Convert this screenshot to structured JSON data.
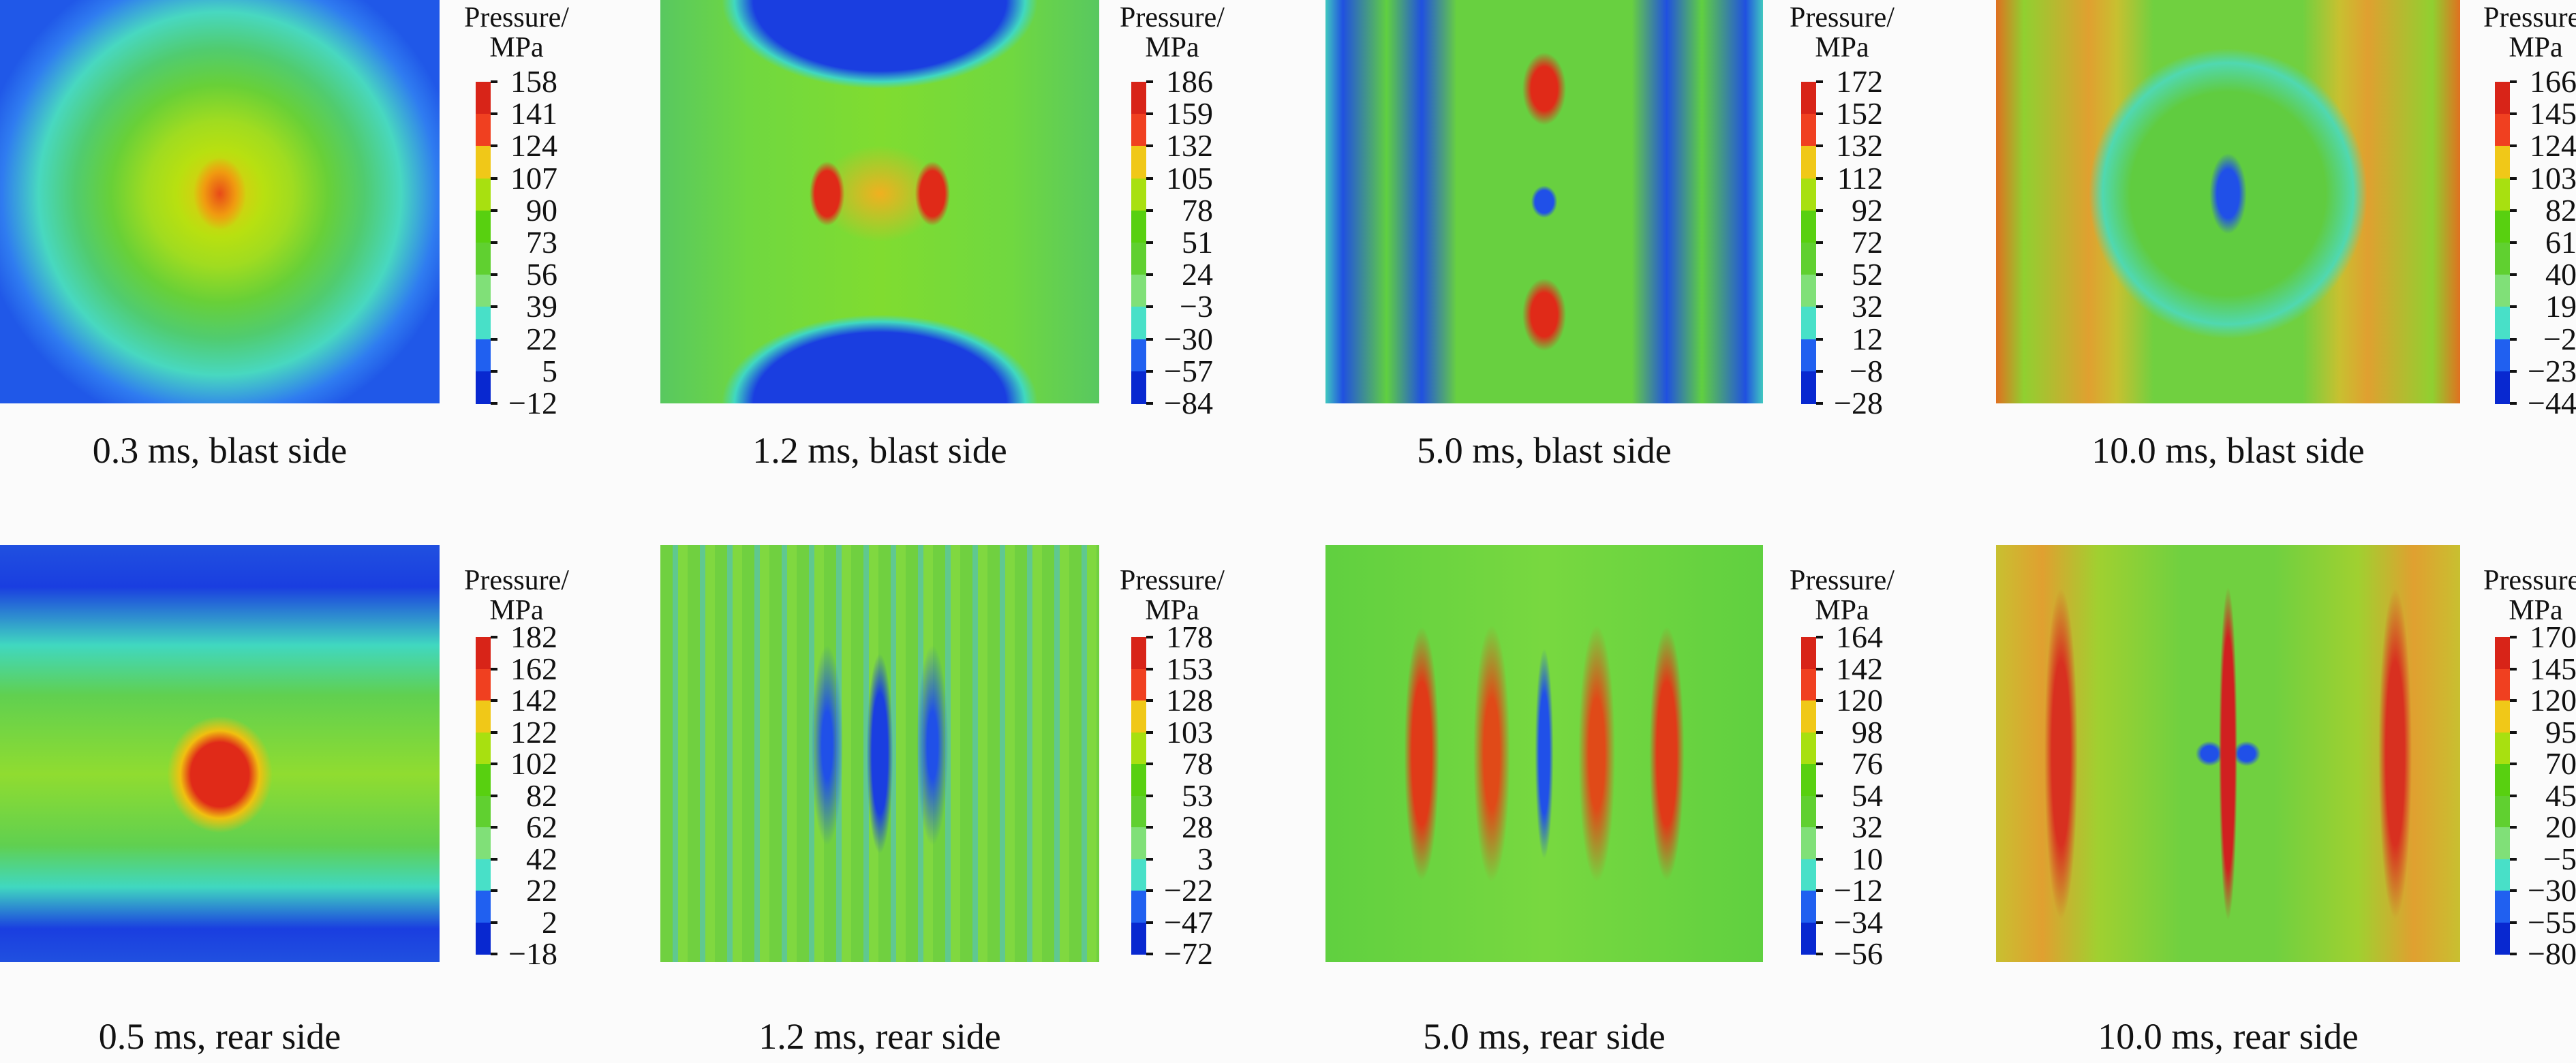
{
  "chart_data": [
    {
      "type": "heatmap",
      "title": "0.3 ms, blast side",
      "colorbar_label": [
        "Pressure/",
        "MPa"
      ],
      "ticks": [
        "158",
        "141",
        "124",
        "107",
        "90",
        "73",
        "56",
        "39",
        "22",
        "5",
        "−12"
      ],
      "vmin": -12,
      "vmax": 158
    },
    {
      "type": "heatmap",
      "title": "1.2 ms, blast side",
      "colorbar_label": [
        "Pressure/",
        "MPa"
      ],
      "ticks": [
        "186",
        "159",
        "132",
        "105",
        "78",
        "51",
        "24",
        "−3",
        "−30",
        "−57",
        "−84"
      ],
      "vmin": -84,
      "vmax": 186
    },
    {
      "type": "heatmap",
      "title": "5.0 ms, blast side",
      "colorbar_label": [
        "Pressure/",
        "MPa"
      ],
      "ticks": [
        "172",
        "152",
        "132",
        "112",
        "92",
        "72",
        "52",
        "32",
        "12",
        "−8",
        "−28"
      ],
      "vmin": -28,
      "vmax": 172
    },
    {
      "type": "heatmap",
      "title": "10.0 ms, blast side",
      "colorbar_label": [
        "Pressure/",
        "MPa"
      ],
      "ticks": [
        "166",
        "145",
        "124",
        "103",
        "82",
        "61",
        "40",
        "19",
        "−2",
        "−23",
        "−44"
      ],
      "vmin": -44,
      "vmax": 166
    },
    {
      "type": "heatmap",
      "title": "0.5 ms, rear side",
      "colorbar_label": [
        "Pressure/",
        "MPa"
      ],
      "ticks": [
        "182",
        "162",
        "142",
        "122",
        "102",
        "82",
        "62",
        "42",
        "22",
        "2",
        "−18"
      ],
      "vmin": -18,
      "vmax": 182
    },
    {
      "type": "heatmap",
      "title": "1.2 ms, rear side",
      "colorbar_label": [
        "Pressure/",
        "MPa"
      ],
      "ticks": [
        "178",
        "153",
        "128",
        "103",
        "78",
        "53",
        "28",
        "3",
        "−22",
        "−47",
        "−72"
      ],
      "vmin": -72,
      "vmax": 178
    },
    {
      "type": "heatmap",
      "title": "5.0 ms, rear side",
      "colorbar_label": [
        "Pressure/",
        "MPa"
      ],
      "ticks": [
        "164",
        "142",
        "120",
        "98",
        "76",
        "54",
        "32",
        "10",
        "−12",
        "−34",
        "−56"
      ],
      "vmin": -56,
      "vmax": 164
    },
    {
      "type": "heatmap",
      "title": "10.0 ms, rear side",
      "colorbar_label": [
        "Pressure/",
        "MPa"
      ],
      "ticks": [
        "170",
        "145",
        "120",
        "95",
        "70",
        "45",
        "20",
        "−5",
        "−30",
        "−55",
        "−80"
      ],
      "vmin": -80,
      "vmax": 170
    }
  ],
  "colormap": [
    "#d82418",
    "#f04020",
    "#f0c818",
    "#a8e010",
    "#58d010",
    "#60d030",
    "#80e078",
    "#48e0c8",
    "#2060f0",
    "#0828d0"
  ]
}
